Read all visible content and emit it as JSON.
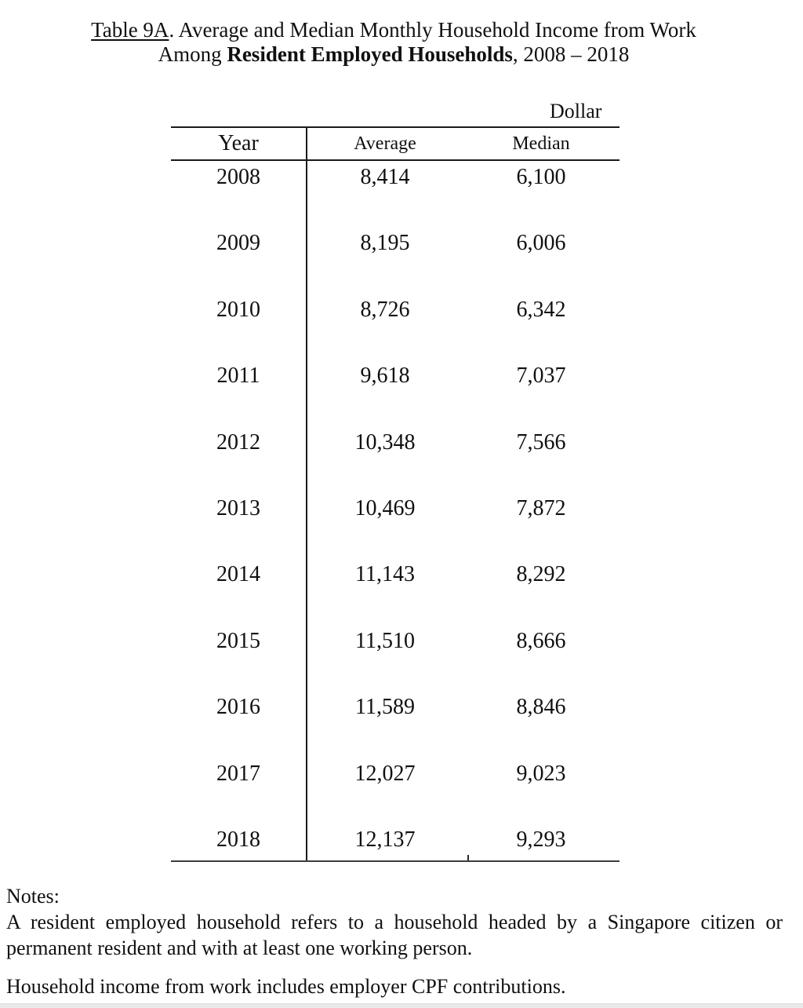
{
  "title": {
    "line1_underlined": "Table 9A",
    "line1_rest": ". Average and Median Monthly Household Income from Work",
    "line2_prefix": "Among ",
    "line2_bold": "Resident Employed Households",
    "line2_suffix": ", 2008 – 2018"
  },
  "unit_label": "Dollar",
  "table": {
    "columns": [
      "Year",
      "Average",
      "Median"
    ],
    "rows": [
      {
        "year": "2008",
        "average": "8,414",
        "median": "6,100"
      },
      {
        "year": "2009",
        "average": "8,195",
        "median": "6,006"
      },
      {
        "year": "2010",
        "average": "8,726",
        "median": "6,342"
      },
      {
        "year": "2011",
        "average": "9,618",
        "median": "7,037"
      },
      {
        "year": "2012",
        "average": "10,348",
        "median": "7,566"
      },
      {
        "year": "2013",
        "average": "10,469",
        "median": "7,872"
      },
      {
        "year": "2014",
        "average": "11,143",
        "median": "8,292"
      },
      {
        "year": "2015",
        "average": "11,510",
        "median": "8,666"
      },
      {
        "year": "2016",
        "average": "11,589",
        "median": "8,846"
      },
      {
        "year": "2017",
        "average": "12,027",
        "median": "9,023"
      },
      {
        "year": "2018",
        "average": "12,137",
        "median": "9,293"
      }
    ]
  },
  "notes": {
    "heading": "Notes:",
    "note1": "A resident employed household refers to a household headed by a Singapore citizen or permanent resident and with at least one working person.",
    "note2": "Household income from work includes employer CPF contributions."
  }
}
